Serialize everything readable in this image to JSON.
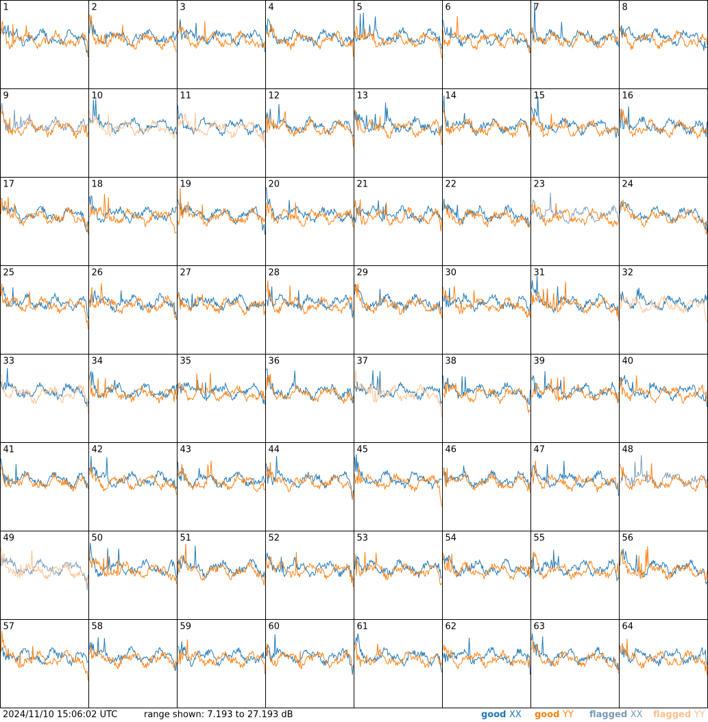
{
  "footer": {
    "timestamp": "2024/11/10 15:06:02 UTC",
    "range_text": "range shown: 7.193 to 27.193 dB"
  },
  "legend": [
    {
      "state": "good",
      "pol": "XX",
      "color": "#1f77b4"
    },
    {
      "state": "good",
      "pol": "YY",
      "color": "#ff7f0e"
    },
    {
      "state": "flagged",
      "pol": "XX",
      "color": "#7a9ab8"
    },
    {
      "state": "flagged",
      "pol": "YY",
      "color": "#ffbf8c"
    }
  ],
  "chart_data": {
    "type": "line",
    "grid": {
      "rows": 8,
      "cols": 8
    },
    "ylim": [
      7.193,
      27.193
    ],
    "y_unit": "dB",
    "panels": [
      {
        "id": "1",
        "xx": "good",
        "yy": "good"
      },
      {
        "id": "2",
        "xx": "good",
        "yy": "good"
      },
      {
        "id": "3",
        "xx": "good",
        "yy": "good"
      },
      {
        "id": "4",
        "xx": "good",
        "yy": "good"
      },
      {
        "id": "5",
        "xx": "good",
        "yy": "good"
      },
      {
        "id": "6",
        "xx": "good",
        "yy": "good"
      },
      {
        "id": "7",
        "xx": "good",
        "yy": "good"
      },
      {
        "id": "8",
        "xx": "good",
        "yy": "good"
      },
      {
        "id": "9",
        "xx": "flagged",
        "yy": "good"
      },
      {
        "id": "10",
        "xx": "good",
        "yy": "flagged"
      },
      {
        "id": "11",
        "xx": "good",
        "yy": "flagged"
      },
      {
        "id": "12",
        "xx": "good",
        "yy": "good"
      },
      {
        "id": "13",
        "xx": "good",
        "yy": "good"
      },
      {
        "id": "14",
        "xx": "good",
        "yy": "good"
      },
      {
        "id": "15",
        "xx": "good",
        "yy": "good"
      },
      {
        "id": "16",
        "xx": "good",
        "yy": "good"
      },
      {
        "id": "17",
        "xx": "good",
        "yy": "good"
      },
      {
        "id": "18",
        "xx": "good",
        "yy": "good"
      },
      {
        "id": "19",
        "xx": "good",
        "yy": "good"
      },
      {
        "id": "20",
        "xx": "good",
        "yy": "good"
      },
      {
        "id": "21",
        "xx": "good",
        "yy": "good"
      },
      {
        "id": "22",
        "xx": "good",
        "yy": "good"
      },
      {
        "id": "23",
        "xx": "flagged",
        "yy": "good"
      },
      {
        "id": "24",
        "xx": "good",
        "yy": "good"
      },
      {
        "id": "25",
        "xx": "good",
        "yy": "good"
      },
      {
        "id": "26",
        "xx": "good",
        "yy": "good"
      },
      {
        "id": "27",
        "xx": "good",
        "yy": "good"
      },
      {
        "id": "28",
        "xx": "good",
        "yy": "good"
      },
      {
        "id": "29",
        "xx": "good",
        "yy": "good"
      },
      {
        "id": "30",
        "xx": "good",
        "yy": "good"
      },
      {
        "id": "31",
        "xx": "good",
        "yy": "good"
      },
      {
        "id": "32",
        "xx": "good",
        "yy": "flagged"
      },
      {
        "id": "33",
        "xx": "good",
        "yy": "flagged"
      },
      {
        "id": "34",
        "xx": "good",
        "yy": "good"
      },
      {
        "id": "35",
        "xx": "good",
        "yy": "good"
      },
      {
        "id": "36",
        "xx": "good",
        "yy": "good"
      },
      {
        "id": "37",
        "xx": "good",
        "yy": "flagged"
      },
      {
        "id": "38",
        "xx": "good",
        "yy": "good"
      },
      {
        "id": "39",
        "xx": "good",
        "yy": "good"
      },
      {
        "id": "40",
        "xx": "good",
        "yy": "good"
      },
      {
        "id": "41",
        "xx": "good",
        "yy": "good"
      },
      {
        "id": "42",
        "xx": "good",
        "yy": "good"
      },
      {
        "id": "43",
        "xx": "good",
        "yy": "good"
      },
      {
        "id": "44",
        "xx": "good",
        "yy": "good"
      },
      {
        "id": "45",
        "xx": "good",
        "yy": "good"
      },
      {
        "id": "46",
        "xx": "good",
        "yy": "good"
      },
      {
        "id": "47",
        "xx": "good",
        "yy": "good"
      },
      {
        "id": "48",
        "xx": "flagged",
        "yy": "good"
      },
      {
        "id": "49",
        "xx": "flagged",
        "yy": "flagged"
      },
      {
        "id": "50",
        "xx": "good",
        "yy": "good"
      },
      {
        "id": "51",
        "xx": "good",
        "yy": "good"
      },
      {
        "id": "52",
        "xx": "good",
        "yy": "good"
      },
      {
        "id": "53",
        "xx": "good",
        "yy": "good"
      },
      {
        "id": "54",
        "xx": "good",
        "yy": "good"
      },
      {
        "id": "55",
        "xx": "good",
        "yy": "good"
      },
      {
        "id": "56",
        "xx": "good",
        "yy": "good"
      },
      {
        "id": "57",
        "xx": "good",
        "yy": "good"
      },
      {
        "id": "58",
        "xx": "good",
        "yy": "good"
      },
      {
        "id": "59",
        "xx": "good",
        "yy": "good"
      },
      {
        "id": "60",
        "xx": "good",
        "yy": "good"
      },
      {
        "id": "61",
        "xx": "good",
        "yy": "good"
      },
      {
        "id": "62",
        "xx": "good",
        "yy": "good"
      },
      {
        "id": "63",
        "xx": "good",
        "yy": "good"
      },
      {
        "id": "64",
        "xx": "good",
        "yy": "good"
      }
    ]
  }
}
